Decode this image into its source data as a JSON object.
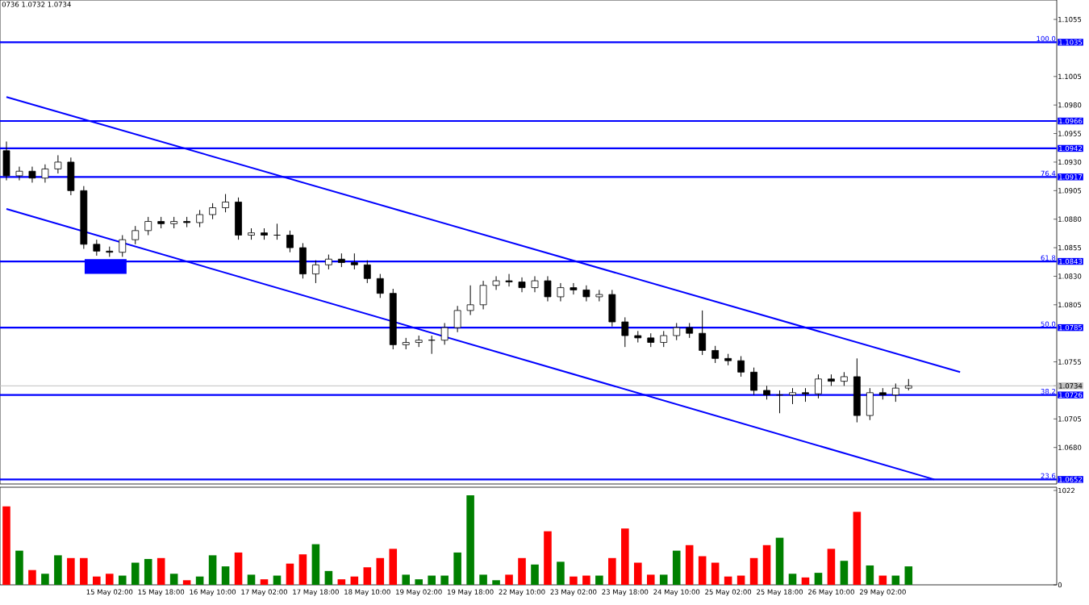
{
  "chart_data": [
    {
      "type": "candlestick",
      "categories": [
        null,
        null,
        null,
        null,
        null,
        null,
        null,
        null,
        null,
        null,
        null,
        null,
        null,
        null,
        null,
        null,
        null,
        null,
        null,
        null,
        null,
        null,
        null,
        null,
        null,
        null,
        null,
        null,
        null,
        null,
        null,
        null,
        null,
        null,
        null,
        null,
        null,
        null,
        null,
        null,
        null,
        null,
        null,
        null,
        null,
        null,
        null,
        null,
        null,
        null,
        null,
        null,
        null,
        null,
        null,
        null,
        null,
        null,
        null,
        null,
        null,
        null,
        null,
        null,
        null,
        null,
        null,
        null,
        null,
        null,
        null,
        null,
        null,
        null,
        null,
        null,
        null,
        null,
        null,
        null,
        null,
        null
      ],
      "ohlc": [
        [
          1.094,
          1.0948,
          1.0914,
          1.0918
        ],
        [
          1.0918,
          1.0926,
          1.0914,
          1.0922
        ],
        [
          1.0922,
          1.0926,
          1.0912,
          1.0916
        ],
        [
          1.0916,
          1.0928,
          1.0912,
          1.0924
        ],
        [
          1.0924,
          1.0936,
          1.092,
          1.093
        ],
        [
          1.093,
          1.0934,
          1.0901,
          1.0905
        ],
        [
          1.0905,
          1.0909,
          1.0854,
          1.0858
        ],
        [
          1.0858,
          1.0862,
          1.0848,
          1.0852
        ],
        [
          1.0852,
          1.0856,
          1.0847,
          1.0851
        ],
        [
          1.0851,
          1.0866,
          1.0847,
          1.0862
        ],
        [
          1.0862,
          1.0874,
          1.0858,
          1.087
        ],
        [
          1.087,
          1.0882,
          1.0866,
          1.0878
        ],
        [
          1.0878,
          1.0882,
          1.0872,
          1.0876
        ],
        [
          1.0876,
          1.0882,
          1.0872,
          1.0878
        ],
        [
          1.0878,
          1.0882,
          1.0873,
          1.0877
        ],
        [
          1.0877,
          1.0888,
          1.0873,
          1.0884
        ],
        [
          1.0884,
          1.0894,
          1.088,
          1.089
        ],
        [
          1.089,
          1.0902,
          1.0886,
          1.0895
        ],
        [
          1.0895,
          1.0899,
          1.0862,
          1.0866
        ],
        [
          1.0866,
          1.0872,
          1.0862,
          1.0868
        ],
        [
          1.0868,
          1.0872,
          1.0862,
          1.0866
        ],
        [
          1.0866,
          1.0876,
          1.0862,
          1.0866
        ],
        [
          1.0866,
          1.087,
          1.0851,
          1.0855
        ],
        [
          1.0855,
          1.0859,
          1.0828,
          1.0832
        ],
        [
          1.0832,
          1.0844,
          1.0824,
          1.084
        ],
        [
          1.084,
          1.0849,
          1.0836,
          1.0845
        ],
        [
          1.0845,
          1.085,
          1.0838,
          1.0842
        ],
        [
          1.0842,
          1.085,
          1.0836,
          1.084
        ],
        [
          1.084,
          1.0844,
          1.0824,
          1.0828
        ],
        [
          1.0828,
          1.0832,
          1.0811,
          1.0815
        ],
        [
          1.0815,
          1.0819,
          1.0766,
          1.077
        ],
        [
          1.077,
          1.0776,
          1.0766,
          1.0772
        ],
        [
          1.0772,
          1.0778,
          1.0768,
          1.0774
        ],
        [
          1.0774,
          1.0778,
          1.0762,
          1.0774
        ],
        [
          1.0774,
          1.0789,
          1.077,
          1.0785
        ],
        [
          1.0785,
          1.0804,
          1.0781,
          1.08
        ],
        [
          1.08,
          1.0822,
          1.0796,
          1.0805
        ],
        [
          1.0805,
          1.0826,
          1.0801,
          1.0822
        ],
        [
          1.0822,
          1.083,
          1.0818,
          1.0826
        ],
        [
          1.0826,
          1.0832,
          1.0821,
          1.0825
        ],
        [
          1.0825,
          1.0829,
          1.0816,
          1.082
        ],
        [
          1.082,
          1.083,
          1.0816,
          1.0826
        ],
        [
          1.0826,
          1.083,
          1.0808,
          1.0812
        ],
        [
          1.0812,
          1.0824,
          1.0808,
          1.082
        ],
        [
          1.082,
          1.0824,
          1.0814,
          1.0818
        ],
        [
          1.0818,
          1.0822,
          1.0808,
          1.0812
        ],
        [
          1.0812,
          1.0818,
          1.0808,
          1.0814
        ],
        [
          1.0814,
          1.0818,
          1.0786,
          1.079
        ],
        [
          1.079,
          1.0794,
          1.0768,
          1.0778
        ],
        [
          1.0778,
          1.0782,
          1.0772,
          1.0776
        ],
        [
          1.0776,
          1.078,
          1.0768,
          1.0772
        ],
        [
          1.0772,
          1.0782,
          1.0768,
          1.0778
        ],
        [
          1.0778,
          1.0789,
          1.0774,
          1.0785
        ],
        [
          1.0785,
          1.0789,
          1.0776,
          1.078
        ],
        [
          1.078,
          1.08,
          1.0761,
          1.0765
        ],
        [
          1.0765,
          1.0769,
          1.0754,
          1.0758
        ],
        [
          1.0758,
          1.0762,
          1.0752,
          1.0756
        ],
        [
          1.0756,
          1.076,
          1.0742,
          1.0746
        ],
        [
          1.0746,
          1.075,
          1.0726,
          1.073
        ],
        [
          1.073,
          1.0734,
          1.0722,
          1.0726
        ],
        [
          1.0726,
          1.073,
          1.071,
          1.0726
        ],
        [
          1.0726,
          1.0732,
          1.0718,
          1.0728
        ],
        [
          1.0728,
          1.0732,
          1.072,
          1.0727
        ],
        [
          1.0727,
          1.0744,
          1.0723,
          1.074
        ],
        [
          1.074,
          1.0744,
          1.0734,
          1.0738
        ],
        [
          1.0738,
          1.0746,
          1.0734,
          1.0742
        ],
        [
          1.0742,
          1.0758,
          1.0702,
          1.0708
        ],
        [
          1.0708,
          1.0732,
          1.0704,
          1.0728
        ],
        [
          1.0728,
          1.0732,
          1.0722,
          1.0726
        ],
        [
          1.0726,
          1.0736,
          1.072,
          1.0732
        ],
        [
          1.0732,
          1.074,
          1.073,
          1.0734
        ],
        null,
        null,
        null,
        null,
        null,
        null,
        null,
        null,
        null,
        null,
        null
      ],
      "ylim": [
        1.0648,
        1.1072
      ],
      "yticks": [
        {
          "value": 1.1055,
          "label": "1.1055"
        },
        {
          "value": 1.1035,
          "label": "1.1035"
        },
        {
          "value": 1.1005,
          "label": "1.1005"
        },
        {
          "value": 1.098,
          "label": "1.0980"
        },
        {
          "value": 1.0966,
          "label": "1.0966"
        },
        {
          "value": 1.0955,
          "label": "1.0955"
        },
        {
          "value": 1.0942,
          "label": "1.0942"
        },
        {
          "value": 1.093,
          "label": "1.0930"
        },
        {
          "value": 1.0917,
          "label": "1.0917"
        },
        {
          "value": 1.0905,
          "label": "1.0905"
        },
        {
          "value": 1.088,
          "label": "1.0880"
        },
        {
          "value": 1.0855,
          "label": "1.0855"
        },
        {
          "value": 1.0843,
          "label": "1.0843"
        },
        {
          "value": 1.083,
          "label": "1.0830"
        },
        {
          "value": 1.0805,
          "label": "1.0805"
        },
        {
          "value": 1.0785,
          "label": "1.0785"
        },
        {
          "value": 1.0755,
          "label": "1.0755"
        },
        {
          "value": 1.0734,
          "label": "1.0734"
        },
        {
          "value": 1.0726,
          "label": "1.0726"
        },
        {
          "value": 1.0705,
          "label": "1.0705"
        },
        {
          "value": 1.068,
          "label": "1.0680"
        },
        {
          "value": 1.0652,
          "label": "1.0652"
        }
      ],
      "tick_labels": "y",
      "ref_lines": [
        {
          "axis": "y",
          "value": 1.1035,
          "color": "#0000ff"
        },
        {
          "axis": "y",
          "value": 1.0966,
          "color": "#0000ff"
        },
        {
          "axis": "y",
          "value": 1.0942,
          "color": "#0000ff"
        },
        {
          "axis": "y",
          "value": 1.0917,
          "color": "#0000ff"
        },
        {
          "axis": "y",
          "value": 1.0843,
          "color": "#0000ff"
        },
        {
          "axis": "y",
          "value": 1.0785,
          "color": "#0000ff"
        },
        {
          "axis": "y",
          "value": 1.0734,
          "color": "#c0c0c0"
        },
        {
          "axis": "y",
          "value": 1.0726,
          "color": "#0000ff"
        },
        {
          "axis": "y",
          "value": 1.0652,
          "color": "#0000ff"
        }
      ],
      "series": [
        {
          "type": "line",
          "color": "#0000ff",
          "values": [
            1.0987,
            null,
            null,
            null,
            null,
            null,
            null,
            null,
            null,
            null,
            null,
            null,
            null,
            null,
            null,
            null,
            null,
            null,
            null,
            null,
            null,
            null,
            null,
            null,
            null,
            null,
            null,
            null,
            null,
            null,
            null,
            null,
            null,
            null,
            null,
            null,
            null,
            null,
            null,
            null,
            null,
            null,
            null,
            null,
            null,
            null,
            null,
            null,
            null,
            null,
            null,
            null,
            null,
            null,
            null,
            null,
            null,
            null,
            null,
            null,
            null,
            null,
            null,
            null,
            null,
            null,
            null,
            null,
            null,
            null,
            null,
            null,
            null,
            null,
            1.0746,
            null,
            null,
            null,
            null,
            null,
            null,
            null
          ]
        },
        {
          "type": "line",
          "color": "#0000ff",
          "values": [
            1.0889,
            null,
            null,
            null,
            null,
            null,
            null,
            null,
            null,
            null,
            null,
            null,
            null,
            null,
            null,
            null,
            null,
            null,
            null,
            null,
            null,
            null,
            null,
            null,
            null,
            null,
            null,
            null,
            null,
            null,
            null,
            null,
            null,
            null,
            null,
            null,
            null,
            null,
            null,
            null,
            null,
            null,
            null,
            null,
            null,
            null,
            null,
            null,
            null,
            null,
            null,
            null,
            null,
            null,
            null,
            null,
            null,
            null,
            null,
            null,
            null,
            null,
            null,
            null,
            null,
            null,
            null,
            null,
            null,
            null,
            null,
            null,
            1.0652,
            null,
            null,
            null,
            null,
            null,
            null,
            null,
            null,
            null
          ]
        }
      ],
      "annotations": [
        "0736 1.0732 1.0734",
        {
          "text": "100.0",
          "y": 1.1035
        },
        {
          "text": "76.4",
          "y": 1.0917
        },
        {
          "text": "61.8",
          "y": 1.0843
        },
        {
          "text": "50.0",
          "y": 1.0785
        },
        {
          "text": "38.2",
          "y": 1.0726
        },
        {
          "text": "23.6",
          "y": 1.0652
        }
      ]
    },
    {
      "type": "bar",
      "categories": [
        null,
        null,
        null,
        null,
        null,
        null,
        null,
        null,
        "15 May 02:00",
        null,
        null,
        null,
        "15 May 18:00",
        null,
        null,
        null,
        "16 May 10:00",
        null,
        null,
        null,
        "17 May 02:00",
        null,
        null,
        null,
        "17 May 18:00",
        null,
        null,
        null,
        "18 May 10:00",
        null,
        null,
        null,
        "19 May 02:00",
        null,
        null,
        null,
        "19 May 18:00",
        null,
        null,
        null,
        "22 May 10:00",
        null,
        null,
        null,
        "23 May 02:00",
        null,
        null,
        null,
        "23 May 18:00",
        null,
        null,
        null,
        "24 May 10:00",
        null,
        null,
        null,
        "25 May 02:00",
        null,
        null,
        null,
        "25 May 18:00",
        null,
        null,
        null,
        "26 May 10:00",
        null,
        null,
        null,
        "29 May 02:00",
        null,
        null,
        null,
        null,
        null,
        null,
        null,
        null,
        null,
        null,
        null,
        null,
        null
      ],
      "values": [
        850,
        370,
        160,
        120,
        320,
        290,
        290,
        90,
        120,
        100,
        240,
        280,
        290,
        120,
        50,
        90,
        320,
        200,
        350,
        110,
        60,
        100,
        230,
        330,
        440,
        150,
        60,
        90,
        190,
        290,
        390,
        110,
        60,
        100,
        100,
        350,
        970,
        110,
        50,
        110,
        290,
        220,
        580,
        250,
        90,
        100,
        100,
        290,
        610,
        240,
        110,
        110,
        370,
        430,
        310,
        240,
        90,
        100,
        290,
        430,
        510,
        120,
        80,
        130,
        390,
        260,
        790,
        210,
        100,
        100,
        200,
        null,
        null,
        null,
        null,
        null,
        null,
        null,
        null,
        null,
        null,
        null
      ],
      "colors": [
        "#ff0000",
        "#008000",
        "#ff0000",
        "#008000",
        "#008000",
        "#ff0000",
        "#ff0000",
        "#ff0000",
        "#ff0000",
        "#008000",
        "#008000",
        "#008000",
        "#ff0000",
        "#008000",
        "#ff0000",
        "#008000",
        "#008000",
        "#008000",
        "#ff0000",
        "#008000",
        "#ff0000",
        "#008000",
        "#ff0000",
        "#ff0000",
        "#008000",
        "#008000",
        "#ff0000",
        "#ff0000",
        "#ff0000",
        "#ff0000",
        "#ff0000",
        "#008000",
        "#008000",
        "#008000",
        "#008000",
        "#008000",
        "#008000",
        "#008000",
        "#008000",
        "#ff0000",
        "#ff0000",
        "#008000",
        "#ff0000",
        "#008000",
        "#ff0000",
        "#ff0000",
        "#008000",
        "#ff0000",
        "#ff0000",
        "#ff0000",
        "#ff0000",
        "#008000",
        "#008000",
        "#ff0000",
        "#ff0000",
        "#ff0000",
        "#ff0000",
        "#ff0000",
        "#ff0000",
        "#ff0000",
        "#008000",
        "#008000",
        "#ff0000",
        "#008000",
        "#ff0000",
        "#008000",
        "#ff0000",
        "#008000",
        "#ff0000",
        "#008000",
        "#008000",
        null,
        null,
        null,
        null,
        null,
        null,
        null,
        null,
        null,
        null,
        null
      ],
      "ylim": [
        0,
        1057
      ],
      "yticks": [
        {
          "value": 0,
          "label": "0"
        },
        {
          "value": 1022,
          "label": "1022"
        }
      ]
    }
  ]
}
